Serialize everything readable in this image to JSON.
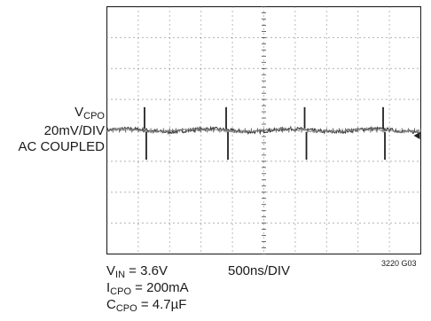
{
  "chart_data": {
    "type": "line",
    "channel": {
      "name": "V",
      "sub": "CPO"
    },
    "vertical_scale": "20mV/DIV",
    "coupling": "AC COUPLED",
    "horizontal_scale": "500ns/DIV",
    "figure_id": "3220 G03",
    "divisions": {
      "x": 10,
      "y": 8
    },
    "trace": {
      "baseline_div": 0.0,
      "ripple_div": 0.08,
      "spike_positions_div": [
        1.2,
        3.8,
        6.3,
        8.8
      ],
      "spike_up_div": 0.75,
      "spike_down_div": -0.95
    },
    "ground_marker": "right-edge"
  },
  "conditions": [
    {
      "name": "V",
      "sub": "IN",
      "value": " = 3.6V"
    },
    {
      "name": "I",
      "sub": "CPO",
      "value": " = 200mA"
    },
    {
      "name": "C",
      "sub": "CPO",
      "value": " = 4.7µF"
    }
  ]
}
